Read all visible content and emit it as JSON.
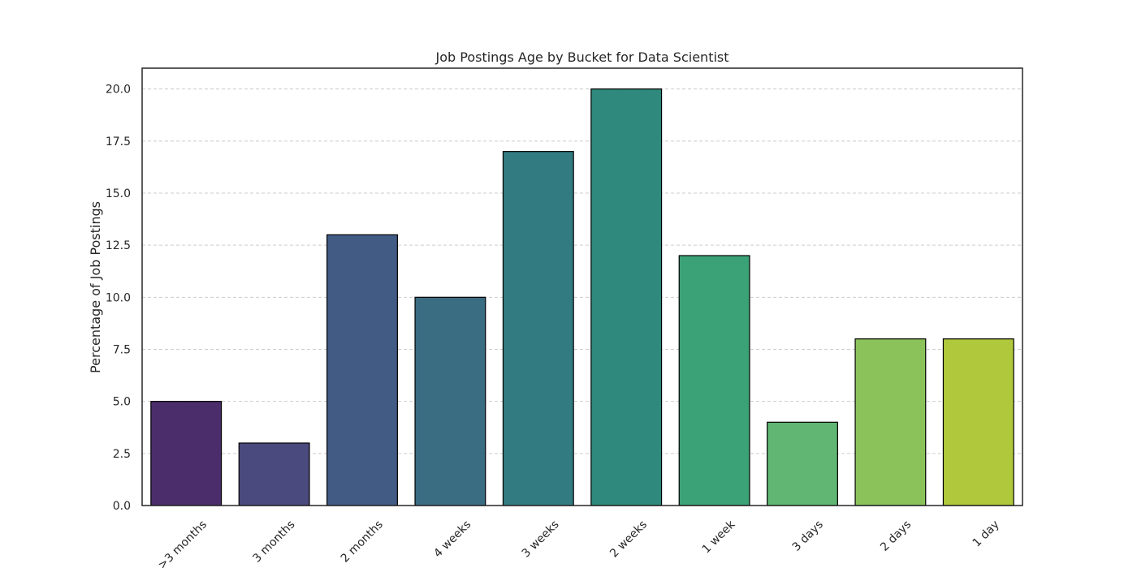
{
  "chart_data": {
    "type": "bar",
    "title": "Job Postings Age by Bucket for Data Scientist",
    "xlabel": "",
    "ylabel": "Percentage of Job Postings",
    "categories": [
      ">3 months",
      "3 months",
      "2 months",
      "4 weeks",
      "3 weeks",
      "2 weeks",
      "1 week",
      "3 days",
      "2 days",
      "1 day"
    ],
    "values": [
      5,
      3,
      13,
      10,
      17,
      20,
      12,
      4,
      8,
      8
    ],
    "colors": [
      "#4b2d6b",
      "#4a4a7e",
      "#425b85",
      "#3a6c82",
      "#327b80",
      "#2f897c",
      "#3ba177",
      "#60b672",
      "#8bc35a",
      "#b0c83b"
    ],
    "ylim": [
      0,
      21
    ],
    "yticks": [
      "0.0",
      "2.5",
      "5.0",
      "7.5",
      "10.0",
      "12.5",
      "15.0",
      "17.5",
      "20.0"
    ],
    "grid": "horizontal-dashed",
    "legend": "none"
  }
}
